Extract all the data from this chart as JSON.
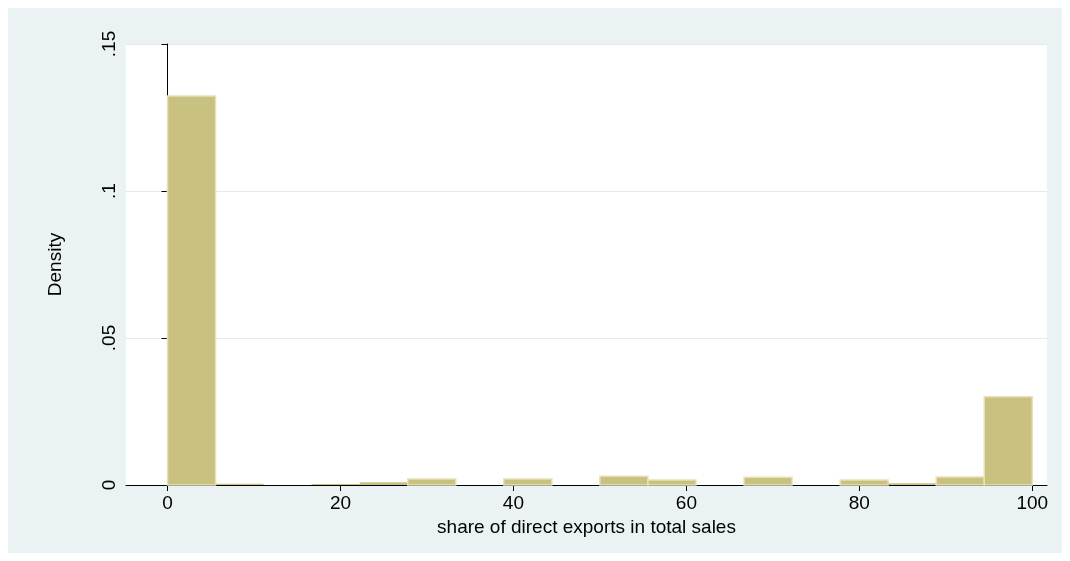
{
  "chart_data": {
    "type": "histogram",
    "xlabel": "share of direct exports in total sales",
    "ylabel": "Density",
    "bins": [
      0,
      5.556,
      11.111,
      16.667,
      22.222,
      27.778,
      33.333,
      38.889,
      44.444,
      50,
      55.556,
      61.111,
      66.667,
      72.222,
      77.778,
      83.333,
      88.889,
      94.444,
      100
    ],
    "values": [
      0.1323,
      0.0004,
      0,
      0.0003,
      0.0009,
      0.002,
      0,
      0.002,
      0,
      0.003,
      0.0017,
      0,
      0.0026,
      0,
      0.0017,
      0.0006,
      0.0027,
      0.03
    ],
    "color": "#c9c17f",
    "xlim": [
      -4.8,
      101.7
    ],
    "xticks": [
      0,
      20,
      40,
      60,
      80,
      100
    ],
    "ylim": [
      0,
      0.15
    ],
    "yticks": [
      0,
      {
        "value": 0.05,
        "label": ".05"
      },
      {
        "value": 0.1,
        "label": ".1"
      },
      {
        "value": 0.15,
        "label": ".15"
      }
    ],
    "grid": "y"
  }
}
